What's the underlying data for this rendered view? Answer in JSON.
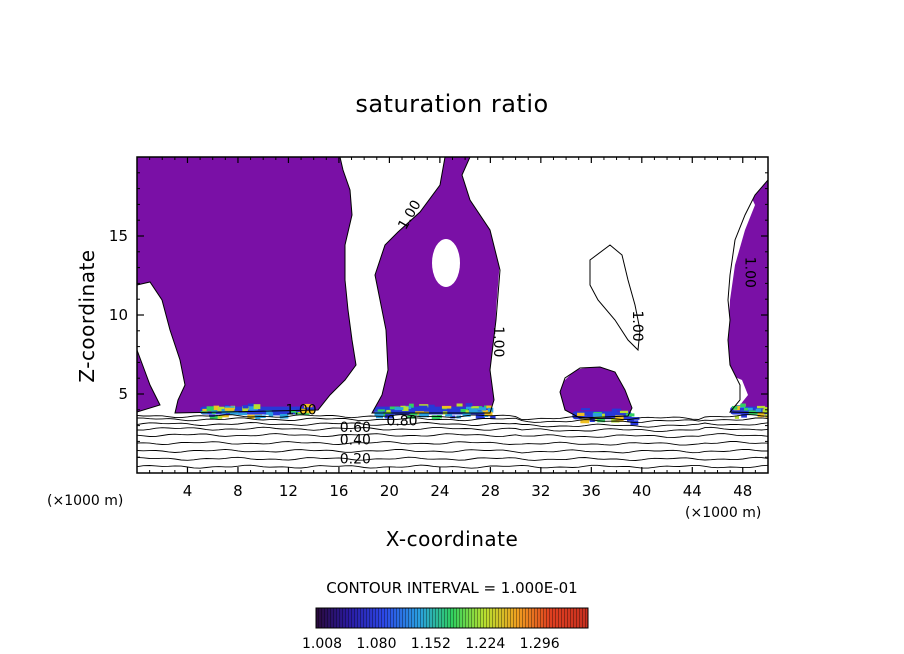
{
  "chart_data": {
    "type": "heatmap",
    "title": "saturation ratio",
    "xlabel": "X-coordinate",
    "ylabel": "Z-coordinate",
    "x_unit": "(×1000 m)",
    "z_unit": "(×1000 m)",
    "xlim": [
      0,
      50
    ],
    "ylim": [
      0,
      20
    ],
    "x_ticks": [
      4,
      8,
      12,
      16,
      20,
      24,
      28,
      32,
      36,
      40,
      44,
      48
    ],
    "y_ticks": [
      5,
      10,
      15
    ],
    "contour_labels": [
      {
        "text": "1.00",
        "x": 21.9,
        "y": 16.2,
        "angle": -60
      },
      {
        "text": "1.00",
        "x": 28.3,
        "y": 8.3,
        "angle": 90
      },
      {
        "text": "1.00",
        "x": 39.3,
        "y": 9.3,
        "angle": 90
      },
      {
        "text": "1.00",
        "x": 48.2,
        "y": 12.7,
        "angle": 90
      },
      {
        "text": "1.00",
        "x": 13.0,
        "y": 3.7,
        "angle": 0
      },
      {
        "text": "0.80",
        "x": 21.0,
        "y": 3.0,
        "angle": 0
      },
      {
        "text": "0.60",
        "x": 17.3,
        "y": 2.6,
        "angle": 0
      },
      {
        "text": "0.40",
        "x": 17.3,
        "y": 1.8,
        "angle": 0
      },
      {
        "text": "0.20",
        "x": 17.3,
        "y": 0.6,
        "angle": 0
      }
    ],
    "contour_interval_text": "CONTOUR INTERVAL = 1.000E-01",
    "colorbar": {
      "min": 1.0,
      "max": 1.36,
      "tick_labels": [
        "1.008",
        "1.080",
        "1.152",
        "1.224",
        "1.296"
      ]
    },
    "grid": false,
    "legend": "colorbar bottom"
  },
  "colors": {
    "fill": "#7a10a6",
    "background": "#ffffff",
    "contour": "#000000"
  }
}
